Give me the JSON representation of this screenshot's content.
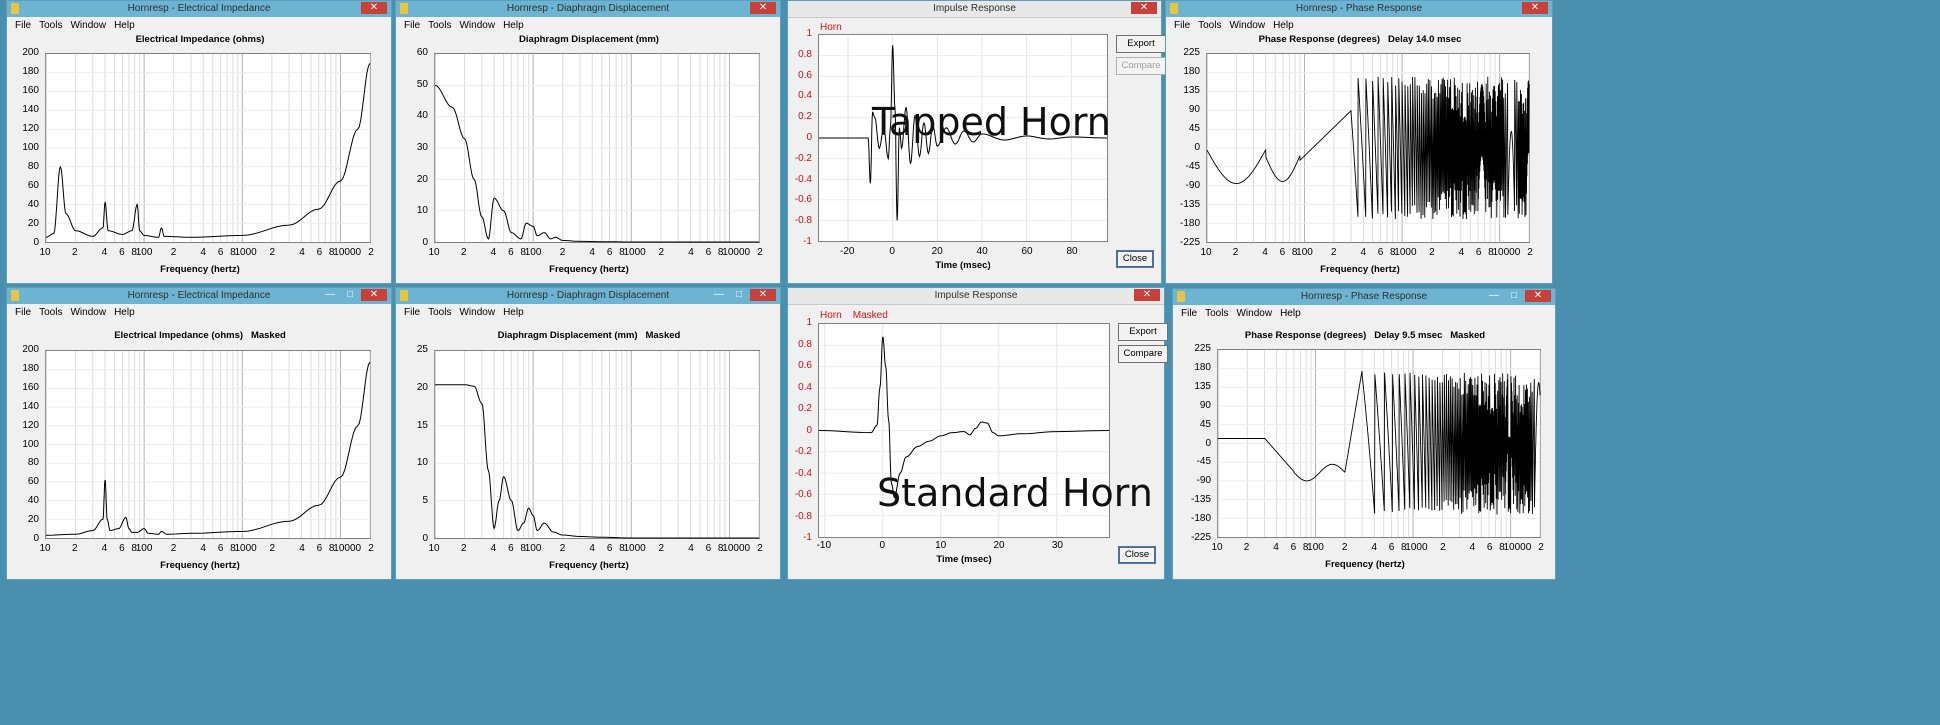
{
  "overlays": {
    "top": "Tapped Horn",
    "bottom": "Standard Horn"
  },
  "menu": {
    "file": "File",
    "tools": "Tools",
    "window": "Window",
    "help": "Help"
  },
  "controls": {
    "min": "—",
    "max": "□",
    "close": "✕"
  },
  "buttons": {
    "export": "Export",
    "compare": "Compare",
    "close": "Close"
  },
  "freq_ticks": [
    "10",
    "2",
    "4",
    "6",
    "8",
    "100",
    "2",
    "4",
    "6",
    "8",
    "1000",
    "2",
    "4",
    "6",
    "8",
    "10000",
    "2"
  ],
  "windows": {
    "imp_top": {
      "title": "Hornresp - Electrical Impedance",
      "plot_title": "Electrical Impedance (ohms)",
      "xlabel": "Frequency (hertz)",
      "y_ticks": [
        "200",
        "180",
        "160",
        "140",
        "120",
        "100",
        "80",
        "60",
        "40",
        "20",
        "0"
      ]
    },
    "disp_top": {
      "title": "Hornresp - Diaphragm Displacement",
      "plot_title": "Diaphragm Displacement (mm)",
      "xlabel": "Frequency (hertz)",
      "y_ticks": [
        "60",
        "50",
        "40",
        "30",
        "20",
        "10",
        "0"
      ]
    },
    "imp_resp_top": {
      "title": "Impulse Response",
      "legend": "Horn",
      "xlabel": "Time (msec)",
      "y_ticks": [
        "1",
        "0.8",
        "0.6",
        "0.4",
        "0.2",
        "0",
        "-0.2",
        "-0.4",
        "-0.6",
        "-0.8",
        "-1"
      ],
      "x_ticks": [
        "-20",
        "0",
        "20",
        "40",
        "60",
        "80"
      ]
    },
    "phase_top": {
      "title": "Hornresp - Phase Response",
      "plot_title": "Phase Response (degrees)   Delay 14.0 msec",
      "xlabel": "Frequency (hertz)",
      "y_ticks": [
        "225",
        "180",
        "135",
        "90",
        "45",
        "0",
        "-45",
        "-90",
        "-135",
        "-180",
        "-225"
      ]
    },
    "imp_bot": {
      "title": "Hornresp - Electrical Impedance",
      "plot_title": "Electrical Impedance (ohms)   Masked",
      "xlabel": "Frequency (hertz)",
      "y_ticks": [
        "200",
        "180",
        "160",
        "140",
        "120",
        "100",
        "80",
        "60",
        "40",
        "20",
        "0"
      ]
    },
    "disp_bot": {
      "title": "Hornresp - Diaphragm Displacement",
      "plot_title": "Diaphragm Displacement (mm)   Masked",
      "xlabel": "Frequency (hertz)",
      "y_ticks": [
        "25",
        "20",
        "15",
        "10",
        "5",
        "0"
      ]
    },
    "imp_resp_bot": {
      "title": "Impulse Response",
      "legend": "Horn    Masked",
      "xlabel": "Time (msec)",
      "y_ticks": [
        "1",
        "0.8",
        "0.6",
        "0.4",
        "0.2",
        "0",
        "-0.2",
        "-0.4",
        "-0.6",
        "-0.8",
        "-1"
      ],
      "x_ticks": [
        "-10",
        "0",
        "10",
        "20",
        "30"
      ]
    },
    "phase_bot": {
      "title": "Hornresp - Phase Response",
      "plot_title": "Phase Response (degrees)   Delay 9.5 msec   Masked",
      "xlabel": "Frequency (hertz)",
      "y_ticks": [
        "225",
        "180",
        "135",
        "90",
        "45",
        "0",
        "-45",
        "-90",
        "-135",
        "-180",
        "-225"
      ]
    }
  },
  "chart_data": [
    {
      "type": "line",
      "title": "Electrical Impedance (ohms)",
      "xlabel": "Frequency (hertz)",
      "xscale": "log",
      "xlim": [
        10,
        20000
      ],
      "ylim": [
        0,
        200
      ],
      "x": [
        10,
        12,
        14,
        16,
        20,
        30,
        38,
        40,
        43,
        60,
        75,
        85,
        90,
        100,
        140,
        150,
        160,
        300,
        1000,
        3000,
        6000,
        10000,
        15000,
        20000
      ],
      "y": [
        5,
        9,
        80,
        30,
        12,
        6,
        15,
        42,
        12,
        8,
        12,
        40,
        12,
        7,
        5,
        15,
        6,
        5,
        7,
        18,
        35,
        65,
        120,
        190
      ]
    },
    {
      "type": "line",
      "title": "Diaphragm Displacement (mm)",
      "xlabel": "Frequency (hertz)",
      "xscale": "log",
      "xlim": [
        10,
        20000
      ],
      "ylim": [
        0,
        60
      ],
      "x": [
        10,
        15,
        20,
        25,
        30,
        35,
        40,
        50,
        60,
        75,
        85,
        100,
        110,
        130,
        150,
        170,
        200,
        300,
        500,
        1000,
        20000
      ],
      "y": [
        50,
        43,
        33,
        20,
        8,
        1,
        14,
        10,
        3,
        1,
        6,
        5,
        2,
        3,
        1,
        1.5,
        0.5,
        0.2,
        0.1,
        0,
        0
      ]
    },
    {
      "type": "line",
      "title": "Impulse Response",
      "xlabel": "Time (msec)",
      "xlim": [
        -33,
        96
      ],
      "ylim": [
        -1,
        1
      ],
      "series": [
        {
          "name": "Horn",
          "x": [
            -33,
            -11,
            -10,
            -9,
            -8,
            -6,
            -4,
            -2,
            -1,
            0,
            1,
            2,
            3,
            4,
            6,
            8,
            10,
            12,
            14,
            16,
            18,
            20,
            24,
            28,
            32,
            36,
            40,
            50,
            60,
            70,
            80,
            96
          ],
          "y": [
            0,
            0,
            -0.44,
            0.25,
            0.2,
            -0.1,
            0.1,
            -0.2,
            0.1,
            0.9,
            0.3,
            -0.8,
            0.1,
            -0.1,
            0.3,
            -0.25,
            0.22,
            -0.18,
            0.15,
            -0.15,
            0.12,
            -0.08,
            0.1,
            -0.06,
            0.07,
            -0.04,
            0.04,
            -0.02,
            0.02,
            -0.01,
            0.01,
            0
          ]
        }
      ]
    },
    {
      "type": "line",
      "title": "Phase Response (degrees)   Delay 14.0 msec",
      "xlabel": "Frequency (hertz)",
      "xscale": "log",
      "xlim": [
        10,
        20000
      ],
      "ylim": [
        -225,
        225
      ]
    },
    {
      "type": "line",
      "title": "Electrical Impedance (ohms)   Masked",
      "xlabel": "Frequency (hertz)",
      "xscale": "log",
      "xlim": [
        10,
        20000
      ],
      "ylim": [
        0,
        200
      ],
      "x": [
        10,
        20,
        30,
        38,
        40,
        42,
        45,
        55,
        65,
        70,
        75,
        85,
        100,
        110,
        140,
        150,
        170,
        300,
        1000,
        3000,
        6000,
        10000,
        15000,
        20000
      ],
      "y": [
        3,
        4,
        8,
        20,
        62,
        20,
        8,
        10,
        22,
        10,
        6,
        6,
        10,
        5,
        4,
        7,
        4,
        5,
        7,
        18,
        35,
        65,
        120,
        188
      ]
    },
    {
      "type": "line",
      "title": "Diaphragm Displacement (mm)   Masked",
      "xlabel": "Frequency (hertz)",
      "xscale": "log",
      "xlim": [
        10,
        20000
      ],
      "ylim": [
        0,
        25
      ],
      "x": [
        10,
        20,
        25,
        30,
        35,
        40,
        45,
        50,
        60,
        70,
        80,
        90,
        100,
        110,
        130,
        160,
        200,
        300,
        500,
        1000,
        20000
      ],
      "y": [
        20.5,
        20.5,
        20.3,
        18,
        9,
        1.3,
        5,
        8.2,
        5,
        1,
        2,
        4,
        3,
        1,
        2,
        0.8,
        0.4,
        0.2,
        0.1,
        0,
        0
      ]
    },
    {
      "type": "line",
      "title": "Impulse Response",
      "xlabel": "Time (msec)",
      "xlim": [
        -11,
        39
      ],
      "ylim": [
        -1,
        1
      ],
      "series": [
        {
          "name": "Horn",
          "x": [
            -11,
            -2,
            -1,
            -0.5,
            0,
            0.5,
            1,
            1.5,
            2,
            3,
            4,
            6,
            8,
            10,
            12,
            14,
            15,
            16,
            17,
            18,
            19,
            20,
            24,
            30,
            39
          ],
          "y": [
            0,
            -0.02,
            0.05,
            0.4,
            0.88,
            0.6,
            0.1,
            -0.5,
            -0.63,
            -0.4,
            -0.25,
            -0.15,
            -0.1,
            -0.05,
            -0.02,
            -0.01,
            -0.04,
            0.02,
            0.08,
            0.07,
            -0.02,
            -0.05,
            -0.03,
            -0.01,
            0
          ]
        }
      ]
    },
    {
      "type": "line",
      "title": "Phase Response (degrees)   Delay 9.5 msec   Masked",
      "xlabel": "Frequency (hertz)",
      "xscale": "log",
      "xlim": [
        10,
        20000
      ],
      "ylim": [
        -225,
        225
      ]
    }
  ]
}
